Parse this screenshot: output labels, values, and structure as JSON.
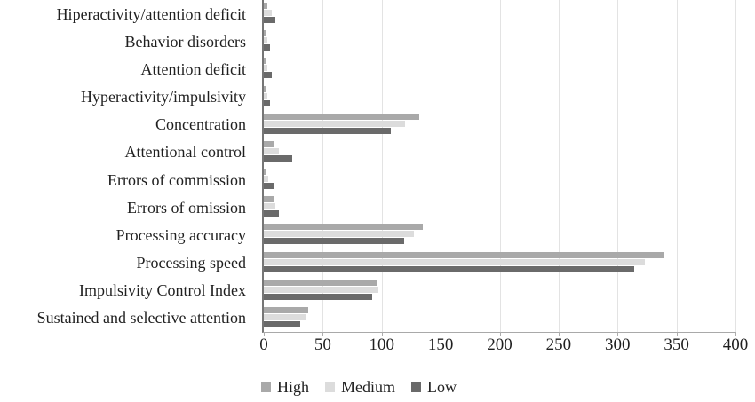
{
  "chart_data": {
    "type": "bar",
    "orientation": "horizontal",
    "title": "",
    "xlabel": "",
    "ylabel": "",
    "categories": [
      "Hiperactivity/attention deficit",
      "Behavior disorders",
      "Attention deficit",
      "Hyperactivity/impulsivity",
      "Concentration",
      "Attentional control",
      "Errors of commission",
      "Errors of omission",
      "Processing accuracy",
      "Processing speed",
      "Impulsivity Control Index",
      "Sustained and selective attention"
    ],
    "series": [
      {
        "name": "High",
        "color": "#a9a9a9",
        "values": [
          3,
          2,
          2,
          2,
          132,
          9,
          2,
          8,
          135,
          340,
          96,
          38
        ]
      },
      {
        "name": "Medium",
        "color": "#dcdcdc",
        "values": [
          7,
          3,
          3,
          3,
          120,
          13,
          4,
          10,
          127,
          323,
          97,
          36
        ]
      },
      {
        "name": "Low",
        "color": "#6a6a6a",
        "values": [
          10,
          5,
          7,
          5,
          108,
          24,
          9,
          13,
          119,
          314,
          92,
          31
        ]
      }
    ],
    "x_ticks": [
      0,
      50,
      100,
      150,
      200,
      250,
      300,
      350,
      400
    ],
    "xlim": [
      0,
      400
    ],
    "grid": true,
    "legend_position": "bottom",
    "colors": {
      "gridline": "#e3e3e3",
      "axis_line": "#767676",
      "baseline": "#a9a9a9",
      "tick_mark": "#adadad",
      "text": "#1f1f1f"
    }
  }
}
